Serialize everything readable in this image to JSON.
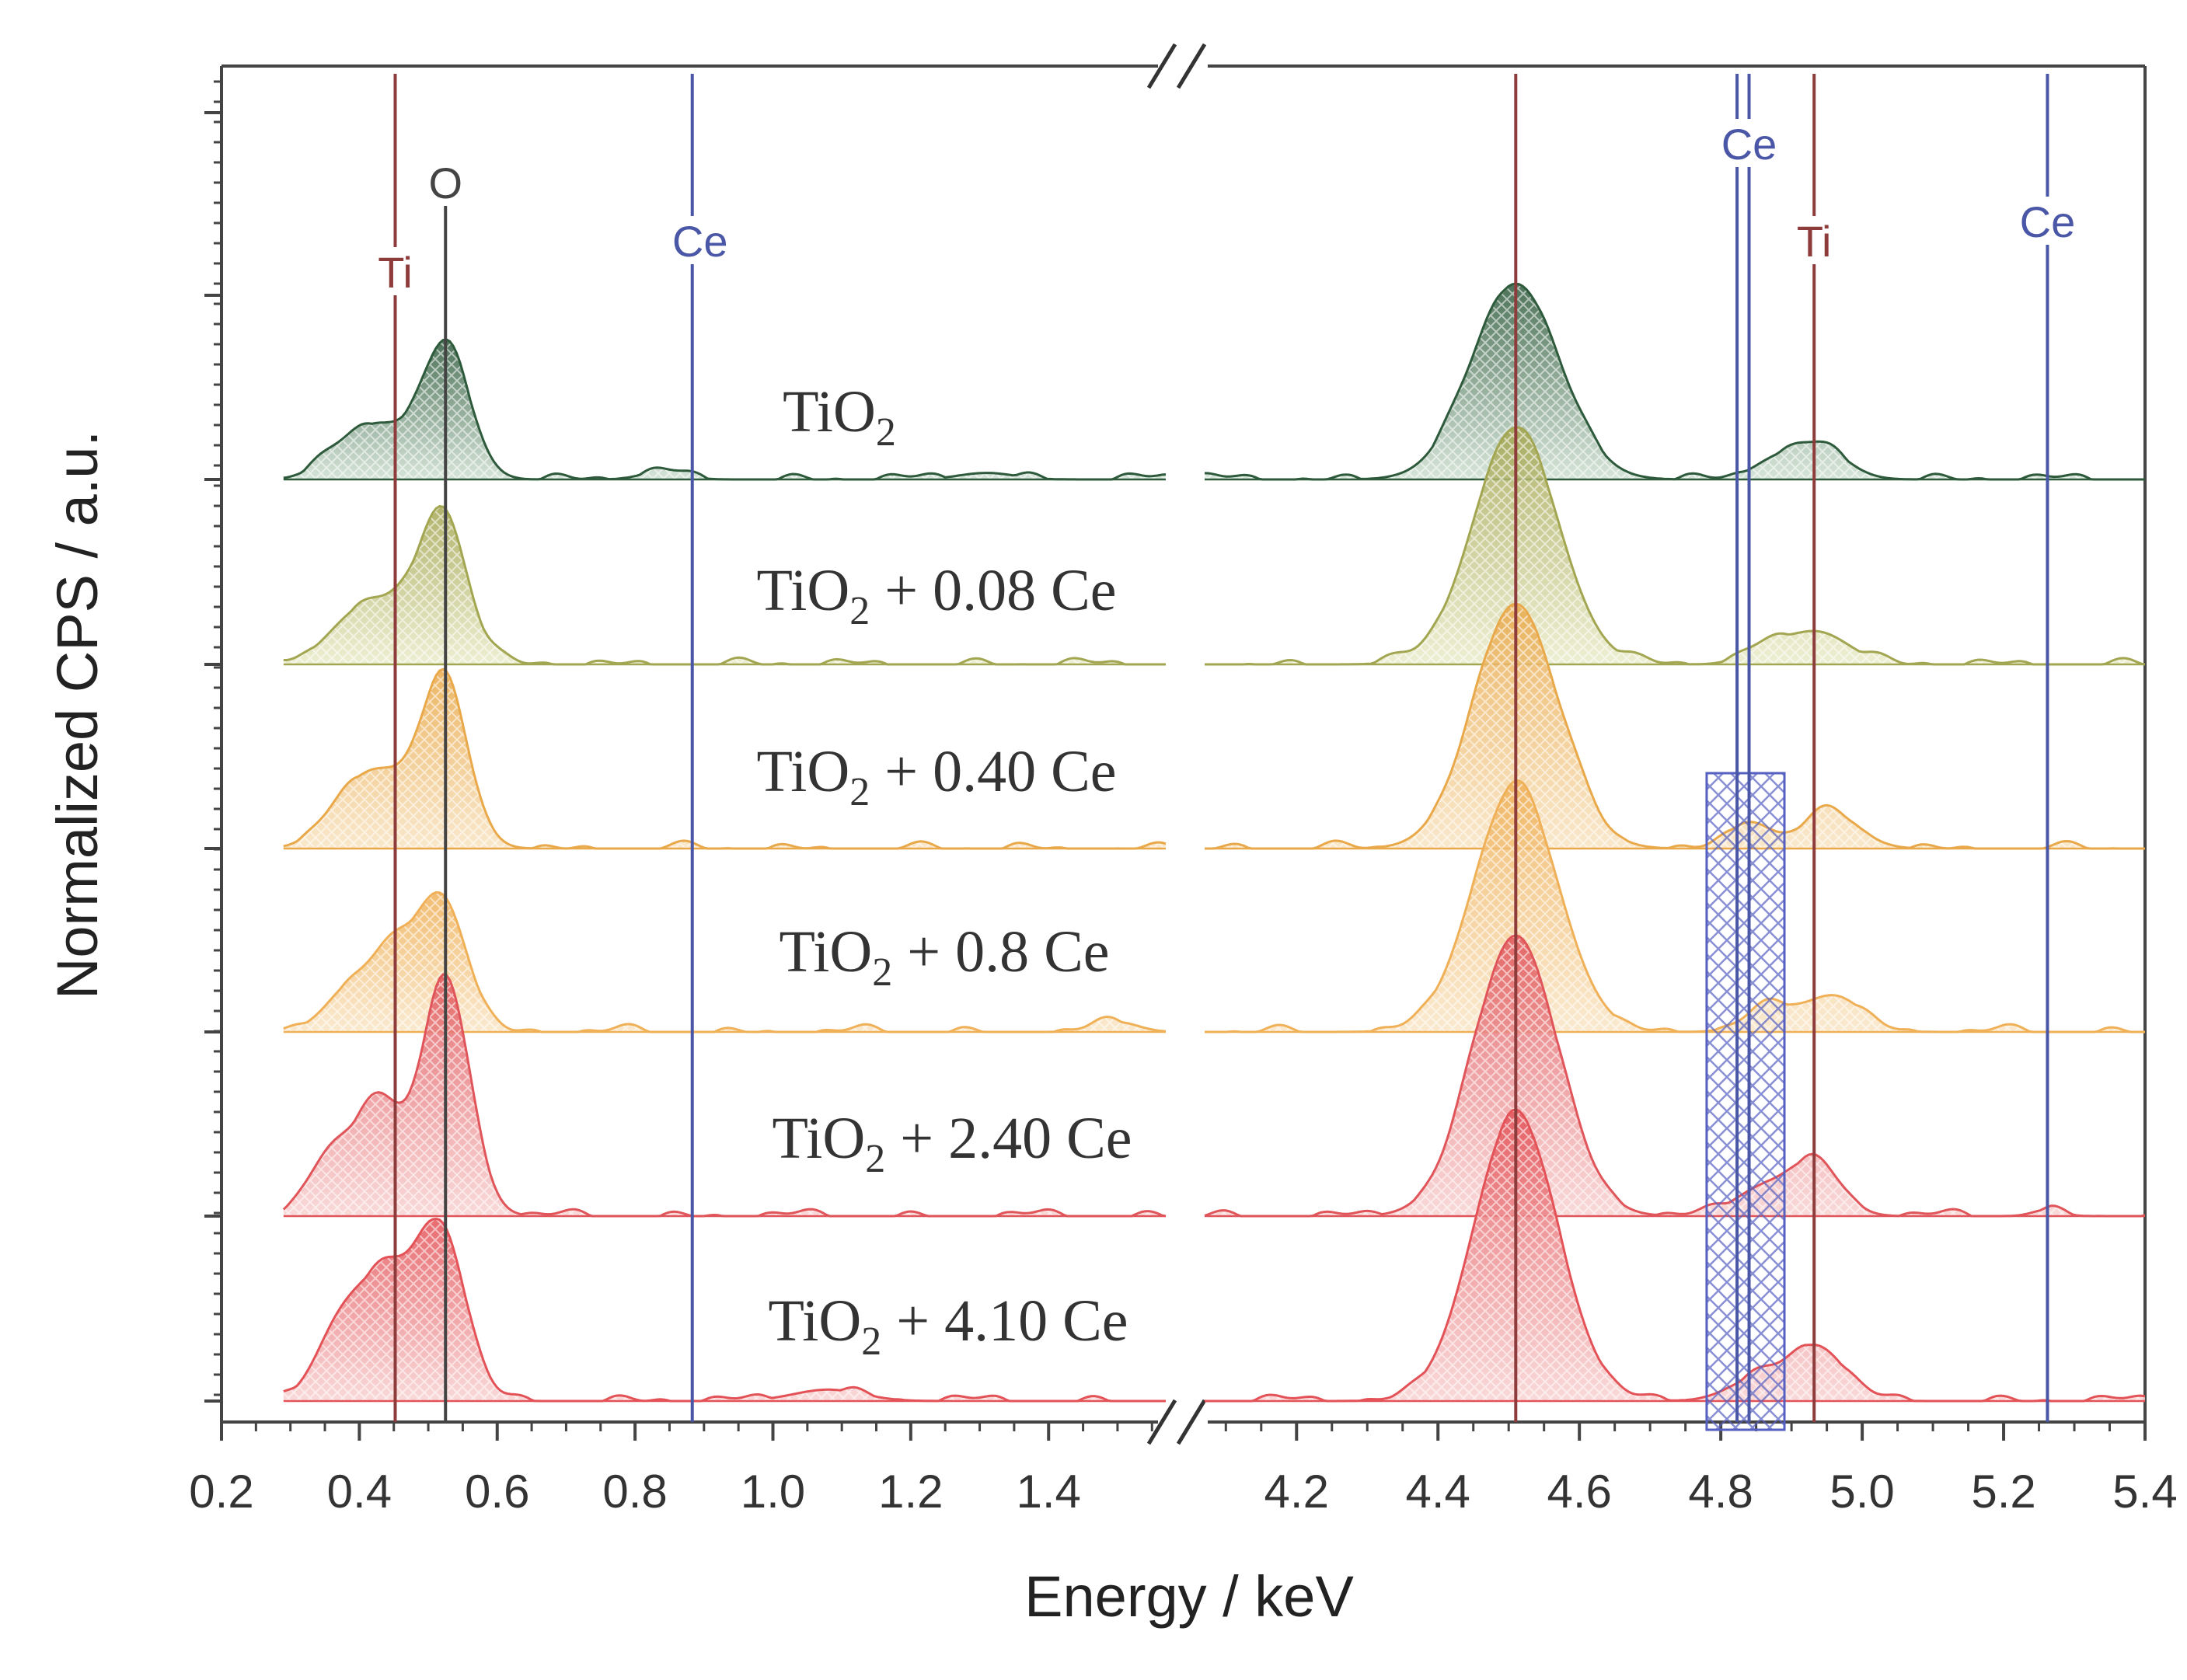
{
  "chart_data": {
    "type": "area",
    "title": "",
    "xlabel": "Energy / keV",
    "ylabel": "Normalized CPS / a.u.",
    "x_segments": [
      {
        "range": [
          0.2,
          1.57
        ],
        "ticks": [
          "0.2",
          "0.4",
          "0.6",
          "0.8",
          "1.0",
          "1.2",
          "1.4"
        ]
      },
      {
        "range": [
          4.07,
          5.4
        ],
        "ticks": [
          "4.2",
          "4.4",
          "4.6",
          "4.8",
          "5.0",
          "5.2",
          "5.4"
        ]
      }
    ],
    "axis_break": "//",
    "reference_lines": [
      {
        "element": "Ti",
        "energy": 0.452,
        "color": "#8e3b3b",
        "show_label": true
      },
      {
        "element": "O",
        "energy": 0.525,
        "color": "#444444",
        "show_label": true
      },
      {
        "element": "Ce",
        "energy": 0.883,
        "color": "#4a56a6",
        "show_label": true
      },
      {
        "element": "Ti",
        "energy": 4.51,
        "color": "#8e3b3b",
        "show_label": false
      },
      {
        "element": "Ce",
        "energy": 4.823,
        "color": "#4a56a6",
        "show_label": false
      },
      {
        "element": "Ce",
        "energy": 4.84,
        "color": "#4a56a6",
        "show_label": true
      },
      {
        "element": "Ti",
        "energy": 4.932,
        "color": "#8e3b3b",
        "show_label": true
      },
      {
        "element": "Ce",
        "energy": 5.262,
        "color": "#4a56a6",
        "show_label": true
      }
    ],
    "highlight_region": [
      4.78,
      4.89
    ],
    "series": [
      {
        "name": "TiO2",
        "label_main": "TiO",
        "label_sub": "2",
        "label_rest": "",
        "color": "#2e5a3c",
        "light": "#cfe0d2",
        "peaks": [
          {
            "center": 0.525,
            "height": 0.82,
            "width": 0.035
          },
          {
            "center": 0.43,
            "height": 0.3,
            "width": 0.04
          },
          {
            "center": 0.37,
            "height": 0.12,
            "width": 0.035
          },
          {
            "center": 0.84,
            "height": 0.05,
            "width": 0.03
          },
          {
            "center": 1.31,
            "height": 0.04,
            "width": 0.04
          },
          {
            "center": 4.51,
            "height": 1.2,
            "width": 0.062
          },
          {
            "center": 4.935,
            "height": 0.21,
            "width": 0.04
          },
          {
            "center": 4.87,
            "height": 0.08,
            "width": 0.03
          }
        ]
      },
      {
        "name": "TiO2 + 0.08 Ce",
        "label_main": "TiO",
        "label_sub": "2",
        "label_rest": "+ 0.08 Ce",
        "color": "#a3a651",
        "light": "#eaeccb",
        "peaks": [
          {
            "center": 0.52,
            "height": 0.94,
            "width": 0.035
          },
          {
            "center": 0.43,
            "height": 0.35,
            "width": 0.04
          },
          {
            "center": 0.37,
            "height": 0.14,
            "width": 0.035
          },
          {
            "center": 4.51,
            "height": 1.45,
            "width": 0.06
          },
          {
            "center": 4.935,
            "height": 0.2,
            "width": 0.045
          },
          {
            "center": 4.86,
            "height": 0.09,
            "width": 0.03
          }
        ]
      },
      {
        "name": "TiO2 + 0.40 Ce",
        "label_main": "TiO",
        "label_sub": "2",
        "label_rest": "+ 0.40 Ce",
        "color": "#e9a94a",
        "light": "#f8e4c3",
        "peaks": [
          {
            "center": 0.522,
            "height": 1.02,
            "width": 0.035
          },
          {
            "center": 0.43,
            "height": 0.42,
            "width": 0.04
          },
          {
            "center": 0.37,
            "height": 0.18,
            "width": 0.035
          },
          {
            "center": 4.51,
            "height": 1.5,
            "width": 0.06
          },
          {
            "center": 4.955,
            "height": 0.22,
            "width": 0.04
          },
          {
            "center": 4.84,
            "height": 0.16,
            "width": 0.03
          }
        ]
      },
      {
        "name": "TiO2 + 0.8 Ce",
        "label_main": "TiO",
        "label_sub": "2",
        "label_rest": "+ 0.8 Ce",
        "color": "#efb057",
        "light": "#f9e6c8",
        "peaks": [
          {
            "center": 0.522,
            "height": 0.75,
            "width": 0.035
          },
          {
            "center": 0.45,
            "height": 0.45,
            "width": 0.04
          },
          {
            "center": 0.38,
            "height": 0.2,
            "width": 0.035
          },
          {
            "center": 1.5,
            "height": 0.06,
            "width": 0.03
          },
          {
            "center": 4.51,
            "height": 1.5,
            "width": 0.06
          },
          {
            "center": 4.96,
            "height": 0.22,
            "width": 0.04
          },
          {
            "center": 4.87,
            "height": 0.14,
            "width": 0.035
          }
        ]
      },
      {
        "name": "TiO2 + 2.40 Ce",
        "label_main": "TiO",
        "label_sub": "2",
        "label_rest": "+ 2.40 Ce",
        "color": "#e0555a",
        "light": "#f8d3d3",
        "peaks": [
          {
            "center": 0.525,
            "height": 1.45,
            "width": 0.035
          },
          {
            "center": 0.425,
            "height": 0.72,
            "width": 0.035
          },
          {
            "center": 0.35,
            "height": 0.3,
            "width": 0.03
          },
          {
            "center": 4.51,
            "height": 1.72,
            "width": 0.06
          },
          {
            "center": 4.935,
            "height": 0.32,
            "width": 0.035
          },
          {
            "center": 4.86,
            "height": 0.17,
            "width": 0.04
          },
          {
            "center": 5.262,
            "height": 0.04,
            "width": 0.02
          }
        ]
      },
      {
        "name": "TiO2 + 4.10 Ce",
        "label_main": "TiO",
        "label_sub": "2",
        "label_rest": "+ 4.10 Ce",
        "color": "#e35257",
        "light": "#f8d3d3",
        "peaks": [
          {
            "center": 0.52,
            "height": 1.0,
            "width": 0.035
          },
          {
            "center": 0.44,
            "height": 0.72,
            "width": 0.04
          },
          {
            "center": 0.37,
            "height": 0.4,
            "width": 0.035
          },
          {
            "center": 1.08,
            "height": 0.07,
            "width": 0.05
          },
          {
            "center": 4.51,
            "height": 1.75,
            "width": 0.06
          },
          {
            "center": 4.935,
            "height": 0.33,
            "width": 0.04
          },
          {
            "center": 4.85,
            "height": 0.13,
            "width": 0.04
          }
        ]
      }
    ]
  }
}
